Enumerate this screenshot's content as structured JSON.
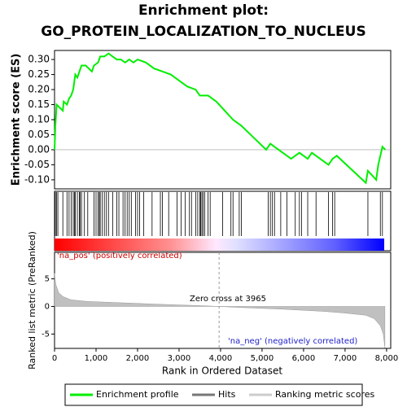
{
  "title": "Enrichment plot:",
  "subtitle": "GO_PROTEIN_LOCALIZATION_TO_NUCLEUS",
  "legend": [
    "Enrichment profile",
    "Hits",
    "Ranking metric scores"
  ],
  "chart_data": [
    {
      "type": "line",
      "ylabel": "Enrichment score (ES)",
      "color": "#00ee00",
      "xlim": [
        0,
        8100
      ],
      "x": [
        0,
        20,
        50,
        200,
        220,
        300,
        350,
        400,
        450,
        500,
        550,
        600,
        650,
        700,
        750,
        900,
        950,
        1050,
        1100,
        1200,
        1300,
        1400,
        1500,
        1600,
        1700,
        1800,
        1900,
        2000,
        2200,
        2400,
        2600,
        2800,
        3000,
        3200,
        3400,
        3500,
        3700,
        3900,
        4100,
        4300,
        4500,
        4800,
        5100,
        5200,
        5300,
        5500,
        5700,
        5900,
        6100,
        6200,
        6400,
        6600,
        6700,
        6800,
        7500,
        7550,
        7750,
        7800,
        7900,
        7970
      ],
      "values": [
        0,
        0.08,
        0.15,
        0.13,
        0.16,
        0.15,
        0.17,
        0.18,
        0.2,
        0.25,
        0.24,
        0.26,
        0.28,
        0.28,
        0.28,
        0.26,
        0.28,
        0.29,
        0.31,
        0.31,
        0.32,
        0.31,
        0.3,
        0.3,
        0.29,
        0.3,
        0.29,
        0.3,
        0.29,
        0.27,
        0.26,
        0.25,
        0.23,
        0.21,
        0.2,
        0.18,
        0.18,
        0.16,
        0.13,
        0.1,
        0.08,
        0.04,
        0,
        0.02,
        0.01,
        -0.01,
        -0.03,
        -0.01,
        -0.03,
        -0.01,
        -0.03,
        -0.05,
        -0.03,
        -0.02,
        -0.11,
        -0.07,
        -0.1,
        -0.05,
        0.01,
        0
      ],
      "ylim": [
        -0.13,
        0.33
      ],
      "yticks": [
        {
          "value": -0.1,
          "label": "-0.10"
        },
        {
          "value": -0.05,
          "label": "-0.05"
        },
        {
          "value": 0,
          "label": "0.00"
        },
        {
          "value": 0.05,
          "label": "0.05"
        },
        {
          "value": 0.1,
          "label": "0.10"
        },
        {
          "value": 0.15,
          "label": "0.15"
        },
        {
          "value": 0.2,
          "label": "0.20"
        },
        {
          "value": 0.25,
          "label": "0.25"
        },
        {
          "value": 0.3,
          "label": "0.30"
        }
      ],
      "hits": [
        20,
        50,
        80,
        200,
        300,
        350,
        400,
        450,
        480,
        500,
        550,
        600,
        620,
        650,
        720,
        800,
        950,
        1000,
        1050,
        1080,
        1100,
        1150,
        1200,
        1250,
        1300,
        1400,
        1500,
        1550,
        1650,
        1700,
        1750,
        1800,
        1850,
        1950,
        2000,
        2050,
        2150,
        2350,
        2550,
        2600,
        2750,
        2950,
        3050,
        3150,
        3250,
        3300,
        3400,
        3450,
        3500,
        3520,
        3550,
        3580,
        3620,
        3700,
        3750,
        4050,
        4250,
        4300,
        4450,
        4500,
        5150,
        5200,
        5250,
        5300,
        5450,
        5600,
        5800,
        5900,
        5950,
        6100,
        6300,
        6600,
        6700,
        6750,
        7550,
        7850,
        7900
      ]
    },
    {
      "type": "area",
      "ylabel": "Ranked list metric (PreRanked)",
      "xlabel": "Rank in Ordered Dataset",
      "color": "#c0c0c0",
      "xlim": [
        0,
        8100
      ],
      "x": [
        0,
        30,
        100,
        200,
        400,
        800,
        1500,
        2500,
        3500,
        3965,
        4500,
        5500,
        6500,
        7000,
        7500,
        7700,
        7850,
        7920,
        7960
      ],
      "values": [
        6,
        4,
        2.5,
        1.8,
        1.2,
        0.9,
        0.7,
        0.4,
        0.15,
        0,
        -0.2,
        -0.5,
        -0.9,
        -1.2,
        -1.6,
        -2.2,
        -3.5,
        -5,
        -7.5
      ],
      "ylim": [
        -7.6,
        9.8
      ],
      "yticks": [
        -5,
        0,
        5
      ],
      "xticks": [
        0,
        {
          "value": 1000,
          "label": "1,000"
        },
        {
          "value": 2000,
          "label": "2,000"
        },
        {
          "value": 3000,
          "label": "3,000"
        },
        {
          "value": 4000,
          "label": "4,000"
        },
        {
          "value": 5000,
          "label": "5,000"
        },
        {
          "value": 6000,
          "label": "6,000"
        },
        {
          "value": 7000,
          "label": "7,000"
        },
        {
          "value": 8000,
          "label": "8,000"
        }
      ],
      "zero_cross": 3965,
      "annotations": [
        "'na_pos' (positively correlated)",
        "Zero cross at 3965",
        "'na_neg' (negatively correlated)"
      ]
    }
  ]
}
